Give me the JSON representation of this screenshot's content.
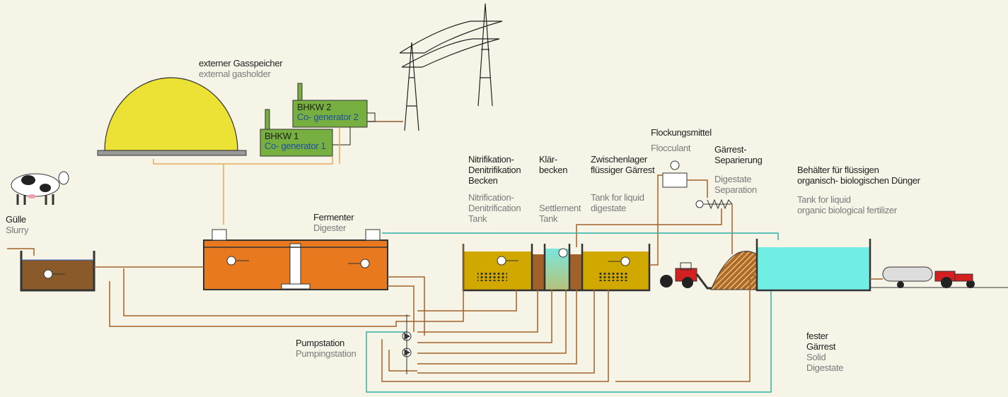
{
  "gasholder": {
    "de": [
      "externer Gasspeicher"
    ],
    "en": [
      "external gasholder"
    ]
  },
  "chp2": {
    "de": [
      "BHKW 2"
    ],
    "en": [
      "Co- generator 2"
    ]
  },
  "chp1": {
    "de": [
      "BHKW 1"
    ],
    "en": [
      "Co- generator 1"
    ]
  },
  "slurry": {
    "de": [
      "Gülle"
    ],
    "en": [
      "Slurry"
    ]
  },
  "digester": {
    "de": [
      "Fermenter"
    ],
    "en": [
      "Digester"
    ]
  },
  "nitrification": {
    "de": [
      "Nitrifikation-",
      "Denitrifikation",
      "Becken"
    ],
    "en": [
      "Nitrification-",
      "Denitrification",
      "Tank"
    ]
  },
  "settlement": {
    "de": [
      "Klär-",
      "becken"
    ],
    "en": [
      "Settlement",
      "Tank"
    ]
  },
  "interim_storage": {
    "de": [
      "Zwischenlager",
      "flüssiger Gärrest"
    ],
    "en": [
      "Tank for liquid",
      "digestate"
    ]
  },
  "flocculant": {
    "de": [
      "Flockungsmittel"
    ],
    "en": [
      "Flocculant"
    ]
  },
  "separation": {
    "de": [
      "Gärrest-",
      "Separierung"
    ],
    "en": [
      "Digestate",
      "Separation"
    ]
  },
  "fertilizer_tank": {
    "de": [
      "Behälter für flüssigen",
      "organisch- biologischen Dünger"
    ],
    "en": [
      "Tank for liquid",
      "organic biological fertilizer"
    ]
  },
  "pumping_station": {
    "de": [
      "Pumpstation"
    ],
    "en": [
      "Pumpingstation"
    ]
  },
  "solid_digestate": {
    "de": [
      "fester",
      "Gärrest"
    ],
    "en": [
      "Solid",
      "Digestate"
    ]
  }
}
